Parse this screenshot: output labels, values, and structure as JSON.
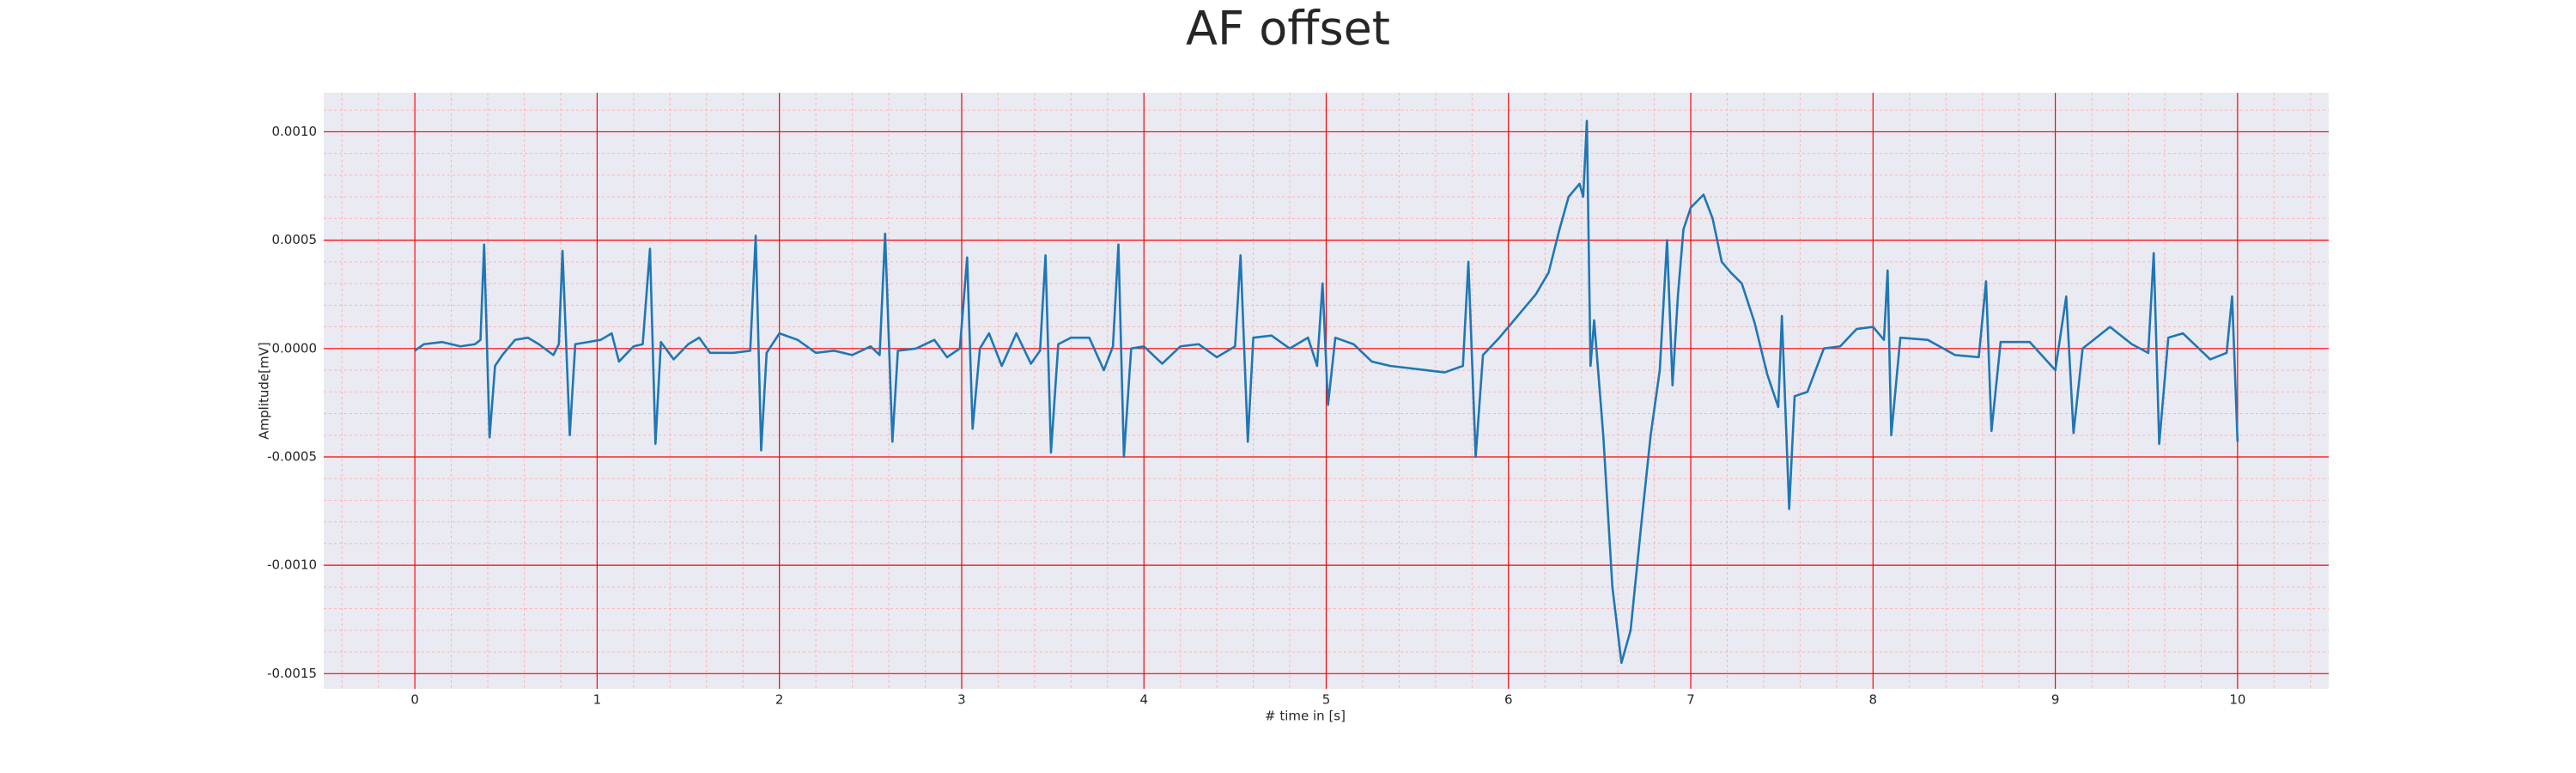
{
  "chart_data": {
    "type": "line",
    "title": "AF offset",
    "x_label": "# time in [s]",
    "y_label": "Amplitude[mV]",
    "xlim": [
      -0.5,
      10.5
    ],
    "ylim": [
      -0.00157,
      0.00118
    ],
    "xticks": [
      0,
      1,
      2,
      3,
      4,
      5,
      6,
      7,
      8,
      9,
      10
    ],
    "yticks": [
      {
        "value": -0.0015,
        "label": "-0.0015"
      },
      {
        "value": -0.001,
        "label": "-0.0010"
      },
      {
        "value": -0.0005,
        "label": "-0.0005"
      },
      {
        "value": 0,
        "label": "0.0000"
      },
      {
        "value": 0.0005,
        "label": "0.0005"
      },
      {
        "value": 0.001,
        "label": "0.0010"
      }
    ],
    "grid": true,
    "minor_grid": true,
    "grid_color": "#ff0000",
    "minor_grid_color": "#ffb3b3",
    "background": "#eaeaf2",
    "x": [
      0.0,
      0.05,
      0.15,
      0.25,
      0.33,
      0.36,
      0.38,
      0.41,
      0.44,
      0.48,
      0.55,
      0.62,
      0.68,
      0.76,
      0.79,
      0.81,
      0.85,
      0.88,
      0.95,
      1.02,
      1.08,
      1.12,
      1.2,
      1.25,
      1.29,
      1.32,
      1.35,
      1.42,
      1.5,
      1.56,
      1.62,
      1.75,
      1.84,
      1.87,
      1.9,
      1.93,
      2.0,
      2.1,
      2.2,
      2.3,
      2.4,
      2.5,
      2.55,
      2.58,
      2.62,
      2.65,
      2.75,
      2.85,
      2.92,
      2.99,
      3.03,
      3.06,
      3.1,
      3.15,
      3.22,
      3.3,
      3.38,
      3.43,
      3.46,
      3.49,
      3.53,
      3.6,
      3.7,
      3.78,
      3.83,
      3.86,
      3.89,
      3.93,
      4.0,
      4.1,
      4.2,
      4.3,
      4.4,
      4.5,
      4.53,
      4.57,
      4.6,
      4.7,
      4.8,
      4.9,
      4.95,
      4.98,
      5.01,
      5.05,
      5.15,
      5.25,
      5.35,
      5.45,
      5.55,
      5.65,
      5.75,
      5.78,
      5.82,
      5.86,
      5.95,
      6.05,
      6.15,
      6.22,
      6.28,
      6.33,
      6.39,
      6.41,
      6.43,
      6.45,
      6.47,
      6.52,
      6.57,
      6.62,
      6.67,
      6.73,
      6.78,
      6.83,
      6.87,
      6.9,
      6.93,
      6.96,
      7.0,
      7.07,
      7.12,
      7.17,
      7.22,
      7.28,
      7.35,
      7.42,
      7.48,
      7.5,
      7.54,
      7.57,
      7.64,
      7.73,
      7.82,
      7.91,
      8.0,
      8.06,
      8.08,
      8.1,
      8.15,
      8.3,
      8.45,
      8.58,
      8.62,
      8.65,
      8.7,
      8.86,
      9.0,
      9.06,
      9.1,
      9.15,
      9.3,
      9.42,
      9.51,
      9.54,
      9.57,
      9.62,
      9.7,
      9.85,
      9.94,
      9.97,
      10.0
    ],
    "series": [
      {
        "color": "#1f77b4",
        "values": [
          -1e-05,
          2e-05,
          3e-05,
          1e-05,
          2e-05,
          4e-05,
          0.00048,
          -0.00041,
          -8e-05,
          -3e-05,
          4e-05,
          5e-05,
          2e-05,
          -3e-05,
          2e-05,
          0.00045,
          -0.0004,
          2e-05,
          3e-05,
          4e-05,
          7e-05,
          -6e-05,
          1e-05,
          2e-05,
          0.00046,
          -0.00044,
          3e-05,
          -5e-05,
          2e-05,
          5e-05,
          -2e-05,
          -2e-05,
          -1e-05,
          0.00052,
          -0.00047,
          -2e-05,
          7e-05,
          4e-05,
          -2e-05,
          -1e-05,
          -3e-05,
          1e-05,
          -3e-05,
          0.00053,
          -0.00043,
          -1e-05,
          0.0,
          4e-05,
          -4e-05,
          0.0,
          0.00042,
          -0.00037,
          0.0,
          7e-05,
          -8e-05,
          7e-05,
          -7e-05,
          -1e-05,
          0.00043,
          -0.00048,
          2e-05,
          5e-05,
          5e-05,
          -0.0001,
          1e-05,
          0.00048,
          -0.0005,
          0.0,
          1e-05,
          -7e-05,
          1e-05,
          2e-05,
          -4e-05,
          1e-05,
          0.00043,
          -0.00043,
          5e-05,
          6e-05,
          0.0,
          5e-05,
          -8e-05,
          0.0003,
          -0.00026,
          5e-05,
          2e-05,
          -6e-05,
          -8e-05,
          -9e-05,
          -0.0001,
          -0.00011,
          -8e-05,
          0.0004,
          -0.0005,
          -3e-05,
          5e-05,
          0.00015,
          0.00025,
          0.00035,
          0.00055,
          0.0007,
          0.00076,
          0.0007,
          0.00105,
          -8e-05,
          0.00013,
          -0.0004,
          -0.0011,
          -0.00145,
          -0.0013,
          -0.0008,
          -0.0004,
          -0.0001,
          0.0005,
          -0.00017,
          0.00025,
          0.00055,
          0.00065,
          0.00071,
          0.0006,
          0.0004,
          0.00035,
          0.0003,
          0.00012,
          -0.00012,
          -0.00027,
          0.00015,
          -0.00074,
          -0.00022,
          -0.0002,
          0.0,
          1e-05,
          9e-05,
          0.0001,
          4e-05,
          0.00036,
          -0.0004,
          5e-05,
          4e-05,
          -3e-05,
          -4e-05,
          0.00031,
          -0.00038,
          3e-05,
          3e-05,
          -0.0001,
          0.00024,
          -0.00039,
          0.0,
          0.0001,
          2e-05,
          -2e-05,
          0.00044,
          -0.00044,
          5e-05,
          7e-05,
          -5e-05,
          -2e-05,
          0.00024,
          -0.00043
        ]
      }
    ]
  }
}
